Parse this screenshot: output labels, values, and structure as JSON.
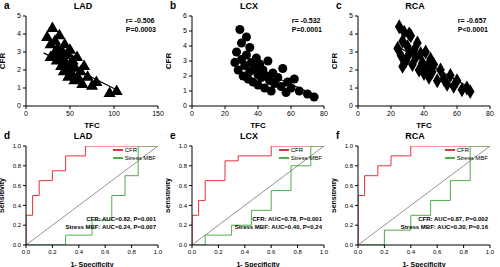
{
  "chart_data": [
    {
      "type": "scatter",
      "panel_label": "a",
      "title": "LAD",
      "x_label": "TFC",
      "y_label": "CFR",
      "annotations": [
        "r= -0.506",
        "P=0.0003"
      ],
      "marker": "triangle",
      "color": "#000000",
      "x": [
        24,
        28,
        30,
        32,
        33,
        35,
        36,
        38,
        38,
        40,
        41,
        42,
        43,
        44,
        45,
        46,
        47,
        48,
        50,
        50,
        52,
        53,
        55,
        56,
        58,
        60,
        62,
        64,
        66,
        70,
        75,
        80,
        95,
        103,
        35,
        44,
        48,
        28
      ],
      "values": [
        3.8,
        3.4,
        4.3,
        2.9,
        3.6,
        2.5,
        3.2,
        2.8,
        3.9,
        2.2,
        3.0,
        2.6,
        1.9,
        3.4,
        2.4,
        2.0,
        2.9,
        1.6,
        2.3,
        3.1,
        1.8,
        2.5,
        1.4,
        2.1,
        2.7,
        1.5,
        1.9,
        1.2,
        2.2,
        1.6,
        1.1,
        1.3,
        0.7,
        0.8,
        3.0,
        2.8,
        2.1,
        2.7
      ],
      "trend": {
        "x": [
          20,
          105
        ],
        "y": [
          2.95,
          0.85
        ]
      },
      "xlim": [
        0,
        150
      ],
      "xticks": [
        0,
        50,
        100,
        150
      ],
      "ylim": [
        0,
        5
      ],
      "yticks": [
        0,
        1,
        2,
        3,
        4,
        5
      ]
    },
    {
      "type": "scatter",
      "panel_label": "b",
      "title": "LCX",
      "x_label": "TFC",
      "y_label": "CFR",
      "annotations": [
        "r= -0.532",
        "P=0.0001"
      ],
      "marker": "circle",
      "color": "#000000",
      "x": [
        26,
        27,
        28,
        30,
        30,
        31,
        32,
        33,
        34,
        35,
        35,
        36,
        37,
        38,
        39,
        40,
        40,
        41,
        42,
        43,
        44,
        45,
        46,
        47,
        48,
        49,
        50,
        52,
        54,
        55,
        57,
        58,
        60,
        62,
        65,
        70,
        74,
        29,
        33
      ],
      "values": [
        2.9,
        3.6,
        2.4,
        4.2,
        3.1,
        2.0,
        2.7,
        3.4,
        1.8,
        2.3,
        3.9,
        2.9,
        1.6,
        2.5,
        3.2,
        2.1,
        1.4,
        2.8,
        1.9,
        2.4,
        1.2,
        2.0,
        3.0,
        1.7,
        1.0,
        2.2,
        1.5,
        1.9,
        1.3,
        2.5,
        0.9,
        1.6,
        1.2,
        1.8,
        1.0,
        0.8,
        0.6,
        5.1,
        4.6
      ],
      "trend": {
        "x": [
          25,
          75
        ],
        "y": [
          3.2,
          0.7
        ]
      },
      "xlim": [
        0,
        80
      ],
      "xticks": [
        0,
        20,
        40,
        60,
        80
      ],
      "ylim": [
        0,
        6
      ],
      "yticks": [
        0,
        1,
        2,
        3,
        4,
        5,
        6
      ]
    },
    {
      "type": "scatter",
      "panel_label": "c",
      "title": "RCA",
      "x_label": "TFC",
      "y_label": "CFR",
      "annotations": [
        "r= -0.657",
        "P<0.0001"
      ],
      "marker": "diamond",
      "color": "#000000",
      "x": [
        24,
        25,
        26,
        27,
        28,
        29,
        30,
        31,
        32,
        33,
        34,
        35,
        36,
        37,
        38,
        39,
        40,
        41,
        42,
        43,
        44,
        45,
        46,
        48,
        50,
        52,
        54,
        56,
        58,
        60,
        63,
        66,
        68,
        27,
        31
      ],
      "values": [
        3.2,
        4.4,
        2.8,
        3.6,
        4.1,
        2.5,
        3.3,
        2.9,
        3.9,
        2.3,
        3.1,
        2.7,
        3.5,
        2.0,
        2.9,
        2.4,
        1.8,
        3.0,
        2.2,
        1.6,
        2.6,
        1.9,
        2.3,
        1.4,
        2.0,
        1.5,
        1.2,
        1.7,
        1.1,
        1.4,
        0.9,
        1.0,
        0.8,
        2.2,
        4.0
      ],
      "trend": {
        "x": [
          24,
          68
        ],
        "y": [
          3.3,
          1.0
        ]
      },
      "xlim": [
        0,
        80
      ],
      "xticks": [
        0,
        20,
        40,
        60,
        80
      ],
      "ylim": [
        0,
        5
      ],
      "yticks": [
        0,
        1,
        2,
        3,
        4,
        5
      ]
    },
    {
      "type": "line",
      "panel_label": "d",
      "title": "LAD",
      "x_label": "1- Specificity",
      "y_label": "Sensitivity",
      "legend": "top right",
      "annotations": [
        "CFR: AUC=0.82, P=0.001",
        "Stress MBF: AUC=0.24, P=0.007"
      ],
      "series": [
        {
          "name": "CFR",
          "color": "#e8303a",
          "x": [
            0,
            0,
            0.05,
            0.05,
            0.1,
            0.1,
            0.2,
            0.2,
            0.3,
            0.3,
            0.45,
            0.45,
            0.6,
            1
          ],
          "values": [
            0,
            0.3,
            0.3,
            0.5,
            0.5,
            0.65,
            0.65,
            0.75,
            0.75,
            0.9,
            0.9,
            1,
            1,
            1
          ]
        },
        {
          "name": "Stress MBF",
          "color": "#4daf4a",
          "x": [
            0,
            0.3,
            0.3,
            0.5,
            0.5,
            0.65,
            0.65,
            0.75,
            0.75,
            0.85,
            0.85,
            1
          ],
          "values": [
            0,
            0,
            0.1,
            0.1,
            0.25,
            0.25,
            0.5,
            0.5,
            0.7,
            0.7,
            1,
            1
          ]
        }
      ],
      "xlim": [
        0,
        1
      ],
      "xticks": [
        {
          "value": 0,
          "label": "0.0"
        },
        {
          "value": 0.2,
          "label": "0.2"
        },
        {
          "value": 0.4,
          "label": "0.4"
        },
        {
          "value": 0.6,
          "label": "0.6"
        },
        {
          "value": 0.8,
          "label": "0.8"
        },
        {
          "value": 1,
          "label": "1.0"
        }
      ],
      "ylim": [
        0,
        1
      ],
      "yticks": [
        {
          "value": 0,
          "label": "0.0"
        },
        {
          "value": 0.2,
          "label": "0.2"
        },
        {
          "value": 0.4,
          "label": "0.4"
        },
        {
          "value": 0.6,
          "label": "0.6"
        },
        {
          "value": 0.8,
          "label": "0.8"
        },
        {
          "value": 1,
          "label": "1.0"
        }
      ]
    },
    {
      "type": "line",
      "panel_label": "e",
      "title": "LCX",
      "x_label": "1- Specificity",
      "y_label": "Sensitivity",
      "legend": "top right",
      "annotations": [
        "CFR: AUC=0.78, P=0.001",
        "Stress MBF: AUC=0.40, P=0.24"
      ],
      "series": [
        {
          "name": "CFR",
          "color": "#e8303a",
          "x": [
            0,
            0,
            0.05,
            0.05,
            0.1,
            0.1,
            0.25,
            0.25,
            0.35,
            0.35,
            0.6,
            0.6,
            1
          ],
          "values": [
            0,
            0.3,
            0.3,
            0.45,
            0.45,
            0.65,
            0.65,
            0.85,
            0.85,
            0.9,
            0.9,
            1,
            1
          ]
        },
        {
          "name": "Stress MBF",
          "color": "#4daf4a",
          "x": [
            0,
            0.1,
            0.1,
            0.3,
            0.3,
            0.45,
            0.45,
            0.6,
            0.6,
            0.75,
            0.75,
            0.9,
            0.9,
            1
          ],
          "values": [
            0,
            0,
            0.1,
            0.1,
            0.2,
            0.2,
            0.35,
            0.35,
            0.55,
            0.55,
            0.8,
            0.8,
            1,
            1
          ]
        }
      ],
      "xlim": [
        0,
        1
      ],
      "xticks": [
        {
          "value": 0,
          "label": "0.0"
        },
        {
          "value": 0.2,
          "label": "0.2"
        },
        {
          "value": 0.4,
          "label": "0.4"
        },
        {
          "value": 0.6,
          "label": "0.6"
        },
        {
          "value": 0.8,
          "label": "0.8"
        },
        {
          "value": 1,
          "label": "1.0"
        }
      ],
      "ylim": [
        0,
        1
      ],
      "yticks": [
        {
          "value": 0,
          "label": "0.0"
        },
        {
          "value": 0.2,
          "label": "0.2"
        },
        {
          "value": 0.4,
          "label": "0.4"
        },
        {
          "value": 0.6,
          "label": "0.6"
        },
        {
          "value": 0.8,
          "label": "0.8"
        },
        {
          "value": 1,
          "label": "1.0"
        }
      ]
    },
    {
      "type": "line",
      "panel_label": "f",
      "title": "RCA",
      "x_label": "1- Specificity",
      "y_label": "Sensitivity",
      "legend": "top right",
      "annotations": [
        "CFR: AUC=0.87, P=0.002",
        "Stress MBF: AUC=0.30, P=0.16"
      ],
      "series": [
        {
          "name": "CFR",
          "color": "#e8303a",
          "x": [
            0,
            0,
            0.05,
            0.05,
            0.15,
            0.15,
            0.25,
            0.25,
            0.4,
            0.4,
            1
          ],
          "values": [
            0,
            0.5,
            0.5,
            0.7,
            0.7,
            0.8,
            0.8,
            0.9,
            0.9,
            1,
            1
          ]
        },
        {
          "name": "Stress MBF",
          "color": "#4daf4a",
          "x": [
            0,
            0.2,
            0.2,
            0.4,
            0.4,
            0.55,
            0.55,
            0.7,
            0.7,
            0.85,
            0.85,
            1
          ],
          "values": [
            0,
            0,
            0.15,
            0.15,
            0.3,
            0.3,
            0.45,
            0.45,
            0.65,
            0.65,
            1,
            1
          ]
        }
      ],
      "xlim": [
        0,
        1
      ],
      "xticks": [
        {
          "value": 0,
          "label": "0.0"
        },
        {
          "value": 0.2,
          "label": "0.2"
        },
        {
          "value": 0.4,
          "label": "0.4"
        },
        {
          "value": 0.6,
          "label": "0.6"
        },
        {
          "value": 0.8,
          "label": "0.8"
        },
        {
          "value": 1,
          "label": "1.0"
        }
      ],
      "ylim": [
        0,
        1
      ],
      "yticks": [
        {
          "value": 0,
          "label": "0.0"
        },
        {
          "value": 0.2,
          "label": "0.2"
        },
        {
          "value": 0.4,
          "label": "0.4"
        },
        {
          "value": 0.6,
          "label": "0.6"
        },
        {
          "value": 0.8,
          "label": "0.8"
        },
        {
          "value": 1,
          "label": "1.0"
        }
      ]
    }
  ]
}
